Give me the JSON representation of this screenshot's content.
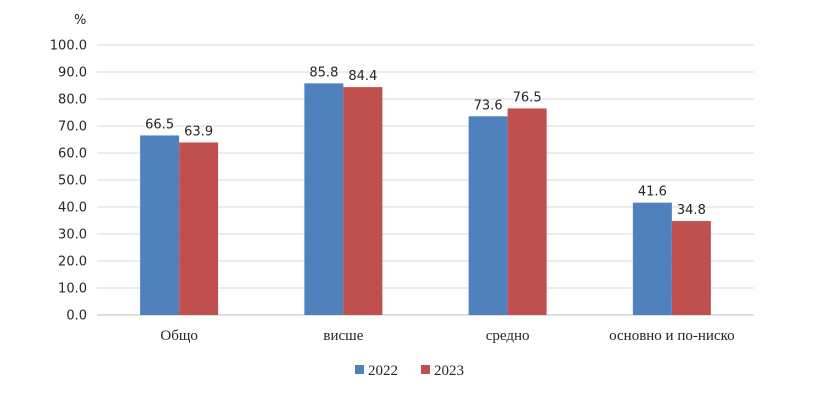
{
  "chart_data": {
    "type": "bar",
    "unit_label": "%",
    "categories": [
      "Общо",
      "висше",
      "средно",
      "основно и по-ниско"
    ],
    "series": [
      {
        "name": "2022",
        "color": "#4f81bd",
        "values": [
          66.5,
          85.8,
          73.6,
          41.6
        ],
        "labels": [
          "66.5",
          "85.8",
          "73.6",
          "41.6"
        ]
      },
      {
        "name": "2023",
        "color": "#c0504d",
        "values": [
          63.9,
          84.4,
          76.5,
          34.8
        ],
        "labels": [
          "63.9",
          "84.4",
          "76.5",
          "34.8"
        ]
      }
    ],
    "ylim": [
      0,
      100
    ],
    "y_ticks": [
      "0.0",
      "10.0",
      "20.0",
      "30.0",
      "40.0",
      "50.0",
      "60.0",
      "70.0",
      "80.0",
      "90.0",
      "100.0"
    ],
    "grid": true,
    "legend_position": "bottom"
  }
}
